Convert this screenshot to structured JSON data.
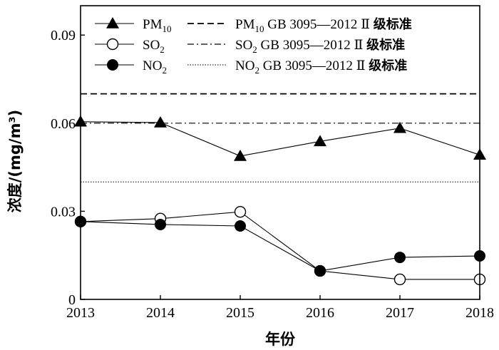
{
  "chart_data": {
    "type": "line",
    "xlabel": "年份",
    "ylabel": "浓度/(mg/m³)",
    "x": [
      2013,
      2014,
      2015,
      2016,
      2017,
      2018
    ],
    "xlim": [
      2013,
      2018
    ],
    "ylim": [
      0,
      0.1
    ],
    "yticks": [
      "0",
      "0.03",
      "0.06",
      "0.09"
    ],
    "ytick_values": [
      0,
      0.03,
      0.06,
      0.09
    ],
    "grid": false,
    "legend_placement": "top",
    "series": [
      {
        "name": "PM10",
        "marker": "filled-triangle",
        "values": [
          0.0605,
          0.0602,
          0.0488,
          0.0538,
          0.0583,
          0.0492
        ]
      },
      {
        "name": "SO2",
        "marker": "open-circle",
        "values": [
          0.0265,
          0.0275,
          0.0298,
          0.0097,
          0.0068,
          0.0068
        ]
      },
      {
        "name": "NO2",
        "marker": "filled-circle",
        "values": [
          0.0265,
          0.0255,
          0.025,
          0.0097,
          0.0143,
          0.0148
        ]
      }
    ],
    "reference_lines": [
      {
        "name": "PM10 GB 3095—2012 Ⅱ 级标准",
        "value": 0.07,
        "style": "dashed"
      },
      {
        "name": "SO2 GB 3095—2012 Ⅱ 级标准",
        "value": 0.06,
        "style": "dash-dot"
      },
      {
        "name": "NO2 GB 3095—2012 Ⅱ 级标准",
        "value": 0.04,
        "style": "dotted"
      }
    ],
    "legend": {
      "series_labels": [
        {
          "base": "PM",
          "sub": "10"
        },
        {
          "base": "SO",
          "sub": "2"
        },
        {
          "base": "NO",
          "sub": "2"
        }
      ],
      "reference_labels": [
        {
          "base": "PM",
          "sub": "10",
          "rest": " GB 3095—2012",
          "roman": " Ⅱ ",
          "cjk": "级标准"
        },
        {
          "base": "SO",
          "sub": "2",
          "rest": " GB 3095—2012",
          "roman": " Ⅱ ",
          "cjk": "级标准"
        },
        {
          "base": "NO",
          "sub": "2",
          "rest": " GB 3095—2012",
          "roman": " Ⅱ ",
          "cjk": "级标准"
        }
      ]
    }
  }
}
